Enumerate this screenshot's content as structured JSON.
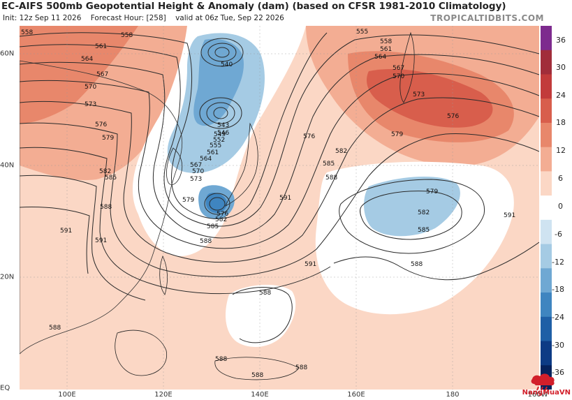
{
  "header": {
    "title": "EC-AIFS 500mb Geopotential Height & Anomaly (dam) (based on CFSR 1981-2010 Climatology)",
    "init": "Init: 12z Sep 11 2026",
    "forecast_hour": "Forecast Hour: [258]",
    "valid": "valid at 06z Tue, Sep 22 2026",
    "brand": "TROPICALTIDBITS.COM"
  },
  "axes": {
    "x_ticks": [
      "100E",
      "120E",
      "140E",
      "160E",
      "180",
      "160W"
    ],
    "y_ticks": [
      "60N",
      "40N",
      "20N",
      "EQ"
    ]
  },
  "colorbar": {
    "ticks": [
      "36",
      "30",
      "24",
      "18",
      "12",
      "6",
      "0",
      "-6",
      "-12",
      "-18",
      "-24",
      "-30",
      "-36"
    ],
    "colors": [
      "#7d2a8e",
      "#a12d3a",
      "#c23b3b",
      "#d85e4c",
      "#e8876b",
      "#f3ad93",
      "#fbd7c5",
      "#ffffff",
      "#cfe3f1",
      "#a5cbe4",
      "#6fa8d3",
      "#3f85c0",
      "#1f5fa6",
      "#0d3b85",
      "#06225c"
    ]
  },
  "contours": {
    "labels": [
      "558",
      "561",
      "564",
      "567",
      "570",
      "573",
      "576",
      "579",
      "582",
      "585",
      "588",
      "591",
      "540",
      "543",
      "546",
      "549",
      "552",
      "555"
    ]
  },
  "watermark": {
    "text": "NangMuaVN"
  }
}
